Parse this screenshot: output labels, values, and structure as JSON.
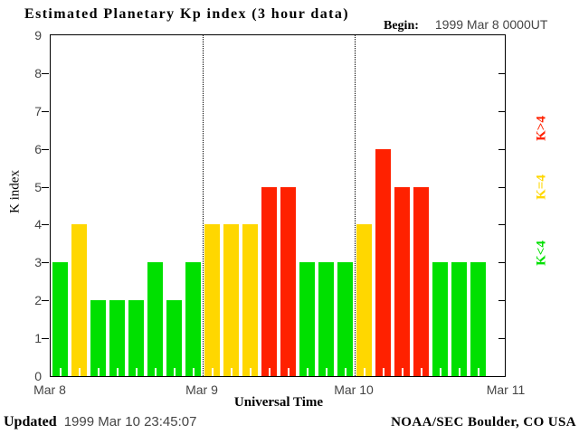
{
  "title": "Estimated Planetary Kp index (3 hour data)",
  "begin": {
    "label": "Begin:",
    "value": "1999 Mar 8 0000UT"
  },
  "y_axis": {
    "title": "K index",
    "ticks": [
      "0",
      "1",
      "2",
      "3",
      "4",
      "5",
      "6",
      "7",
      "8",
      "9"
    ]
  },
  "x_axis": {
    "title": "Universal Time",
    "ticks": [
      "Mar 8",
      "Mar 9",
      "Mar 10",
      "Mar 11"
    ]
  },
  "legend": {
    "items": [
      {
        "label": "K>4",
        "color": "#FF2100"
      },
      {
        "label": "K=4",
        "color": "#FFD700"
      },
      {
        "label": "K<4",
        "color": "#00E000"
      }
    ]
  },
  "footer": {
    "updated_label": "Updated",
    "updated_time": "1999 Mar 10 23:45:07",
    "credit": "NOAA/SEC Boulder, CO USA"
  },
  "chart_data": {
    "type": "bar",
    "title": "Estimated Planetary Kp index (3 hour data)",
    "begin": "1999 Mar 8 0000UT",
    "xlabel": "Universal Time",
    "ylabel": "K index",
    "ylim": [
      0,
      9
    ],
    "bar_interval_hours": 3,
    "bars_per_day": 8,
    "categories": [
      "Mar 8",
      "Mar 9",
      "Mar 10"
    ],
    "series": [
      {
        "name": "Mar 8",
        "values": [
          3,
          4,
          2,
          2,
          2,
          3,
          2,
          3
        ]
      },
      {
        "name": "Mar 9",
        "values": [
          4,
          4,
          4,
          5,
          5,
          3,
          3,
          3
        ]
      },
      {
        "name": "Mar 10",
        "values": [
          4,
          6,
          5,
          5,
          3,
          3,
          3
        ]
      }
    ],
    "color_rules": {
      "k_lt_4": "#00E000",
      "k_eq_4": "#FFD700",
      "k_gt_4": "#FF2100"
    },
    "layout": {
      "grid": "dotted vertical lines at day boundaries",
      "legend_position": "right-rotated"
    }
  }
}
